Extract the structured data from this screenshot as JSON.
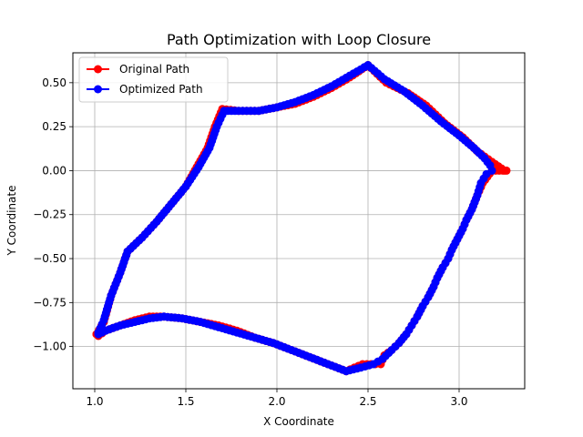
{
  "chart_data": {
    "type": "line",
    "title": "Path Optimization with Loop Closure",
    "xlabel": "X Coordinate",
    "ylabel": "Y Coordinate",
    "xlim": [
      0.88,
      3.36
    ],
    "ylim": [
      -1.24,
      0.67
    ],
    "x_ticks": [
      1.0,
      1.5,
      2.0,
      2.5,
      3.0
    ],
    "x_tick_labels": [
      "1.0",
      "1.5",
      "2.0",
      "2.5",
      "3.0"
    ],
    "y_ticks": [
      -1.0,
      -0.75,
      -0.5,
      -0.25,
      0.0,
      0.25,
      0.5
    ],
    "y_tick_labels": [
      "−1.00",
      "−0.75",
      "−0.50",
      "−0.25",
      "0.00",
      "0.25",
      "0.50"
    ],
    "grid": true,
    "legend_position": "upper-left",
    "series": [
      {
        "name": "Original Path",
        "color": "#ff0000",
        "marker": "circle",
        "points": [
          [
            1.01,
            -0.93
          ],
          [
            1.05,
            -0.86
          ],
          [
            1.09,
            -0.71
          ],
          [
            1.14,
            -0.58
          ],
          [
            1.18,
            -0.46
          ],
          [
            1.26,
            -0.38
          ],
          [
            1.34,
            -0.29
          ],
          [
            1.42,
            -0.19
          ],
          [
            1.5,
            -0.09
          ],
          [
            1.56,
            0.02
          ],
          [
            1.62,
            0.13
          ],
          [
            1.66,
            0.25
          ],
          [
            1.7,
            0.35
          ],
          [
            1.79,
            0.34
          ],
          [
            1.9,
            0.34
          ],
          [
            2.0,
            0.36
          ],
          [
            2.1,
            0.38
          ],
          [
            2.2,
            0.42
          ],
          [
            2.3,
            0.47
          ],
          [
            2.4,
            0.53
          ],
          [
            2.5,
            0.6
          ],
          [
            2.6,
            0.5
          ],
          [
            2.72,
            0.44
          ],
          [
            2.82,
            0.37
          ],
          [
            2.92,
            0.27
          ],
          [
            3.02,
            0.19
          ],
          [
            3.1,
            0.11
          ],
          [
            3.18,
            0.05
          ],
          [
            3.25,
            0.0
          ],
          [
            3.26,
            0.0
          ],
          [
            3.18,
            0.0
          ],
          [
            3.13,
            -0.07
          ],
          [
            3.1,
            -0.14
          ],
          [
            3.07,
            -0.22
          ],
          [
            3.04,
            -0.28
          ],
          [
            3.02,
            -0.33
          ],
          [
            2.99,
            -0.39
          ],
          [
            2.96,
            -0.45
          ],
          [
            2.94,
            -0.5
          ],
          [
            2.91,
            -0.55
          ],
          [
            2.88,
            -0.61
          ],
          [
            2.86,
            -0.66
          ],
          [
            2.83,
            -0.72
          ],
          [
            2.8,
            -0.77
          ],
          [
            2.77,
            -0.83
          ],
          [
            2.74,
            -0.88
          ],
          [
            2.71,
            -0.93
          ],
          [
            2.67,
            -0.98
          ],
          [
            2.63,
            -1.02
          ],
          [
            2.59,
            -1.05
          ],
          [
            2.57,
            -1.1
          ],
          [
            2.54,
            -1.1
          ],
          [
            2.47,
            -1.1
          ],
          [
            2.38,
            -1.14
          ],
          [
            2.28,
            -1.1
          ],
          [
            2.18,
            -1.06
          ],
          [
            2.08,
            -1.02
          ],
          [
            1.98,
            -0.98
          ],
          [
            1.88,
            -0.95
          ],
          [
            1.78,
            -0.91
          ],
          [
            1.68,
            -0.88
          ],
          [
            1.58,
            -0.86
          ],
          [
            1.48,
            -0.84
          ],
          [
            1.38,
            -0.83
          ],
          [
            1.3,
            -0.83
          ],
          [
            1.22,
            -0.85
          ],
          [
            1.14,
            -0.88
          ],
          [
            1.06,
            -0.91
          ],
          [
            1.02,
            -0.94
          ],
          [
            1.01,
            -0.93
          ]
        ]
      },
      {
        "name": "Optimized Path",
        "color": "#0000ff",
        "marker": "circle",
        "points": [
          [
            1.02,
            -0.92
          ],
          [
            1.05,
            -0.85
          ],
          [
            1.09,
            -0.71
          ],
          [
            1.14,
            -0.58
          ],
          [
            1.18,
            -0.46
          ],
          [
            1.26,
            -0.38
          ],
          [
            1.34,
            -0.29
          ],
          [
            1.42,
            -0.19
          ],
          [
            1.5,
            -0.09
          ],
          [
            1.57,
            0.02
          ],
          [
            1.63,
            0.13
          ],
          [
            1.67,
            0.25
          ],
          [
            1.71,
            0.34
          ],
          [
            1.79,
            0.34
          ],
          [
            1.9,
            0.34
          ],
          [
            2.0,
            0.36
          ],
          [
            2.1,
            0.39
          ],
          [
            2.2,
            0.43
          ],
          [
            2.3,
            0.48
          ],
          [
            2.4,
            0.54
          ],
          [
            2.5,
            0.6
          ],
          [
            2.59,
            0.52
          ],
          [
            2.7,
            0.45
          ],
          [
            2.8,
            0.37
          ],
          [
            2.9,
            0.28
          ],
          [
            3.0,
            0.2
          ],
          [
            3.08,
            0.13
          ],
          [
            3.14,
            0.07
          ],
          [
            3.17,
            0.03
          ],
          [
            3.18,
            0.0
          ],
          [
            3.15,
            -0.02
          ],
          [
            3.12,
            -0.07
          ],
          [
            3.1,
            -0.14
          ],
          [
            3.07,
            -0.22
          ],
          [
            3.04,
            -0.28
          ],
          [
            3.02,
            -0.33
          ],
          [
            2.99,
            -0.39
          ],
          [
            2.96,
            -0.45
          ],
          [
            2.94,
            -0.5
          ],
          [
            2.91,
            -0.55
          ],
          [
            2.88,
            -0.61
          ],
          [
            2.86,
            -0.66
          ],
          [
            2.83,
            -0.72
          ],
          [
            2.8,
            -0.77
          ],
          [
            2.77,
            -0.83
          ],
          [
            2.74,
            -0.88
          ],
          [
            2.71,
            -0.93
          ],
          [
            2.67,
            -0.98
          ],
          [
            2.63,
            -1.02
          ],
          [
            2.58,
            -1.07
          ],
          [
            2.53,
            -1.1
          ],
          [
            2.46,
            -1.12
          ],
          [
            2.38,
            -1.14
          ],
          [
            2.28,
            -1.1
          ],
          [
            2.18,
            -1.06
          ],
          [
            2.08,
            -1.02
          ],
          [
            1.98,
            -0.98
          ],
          [
            1.88,
            -0.95
          ],
          [
            1.78,
            -0.92
          ],
          [
            1.68,
            -0.89
          ],
          [
            1.58,
            -0.86
          ],
          [
            1.48,
            -0.84
          ],
          [
            1.38,
            -0.83
          ],
          [
            1.3,
            -0.84
          ],
          [
            1.22,
            -0.86
          ],
          [
            1.14,
            -0.88
          ],
          [
            1.06,
            -0.91
          ],
          [
            1.02,
            -0.93
          ]
        ]
      }
    ]
  }
}
